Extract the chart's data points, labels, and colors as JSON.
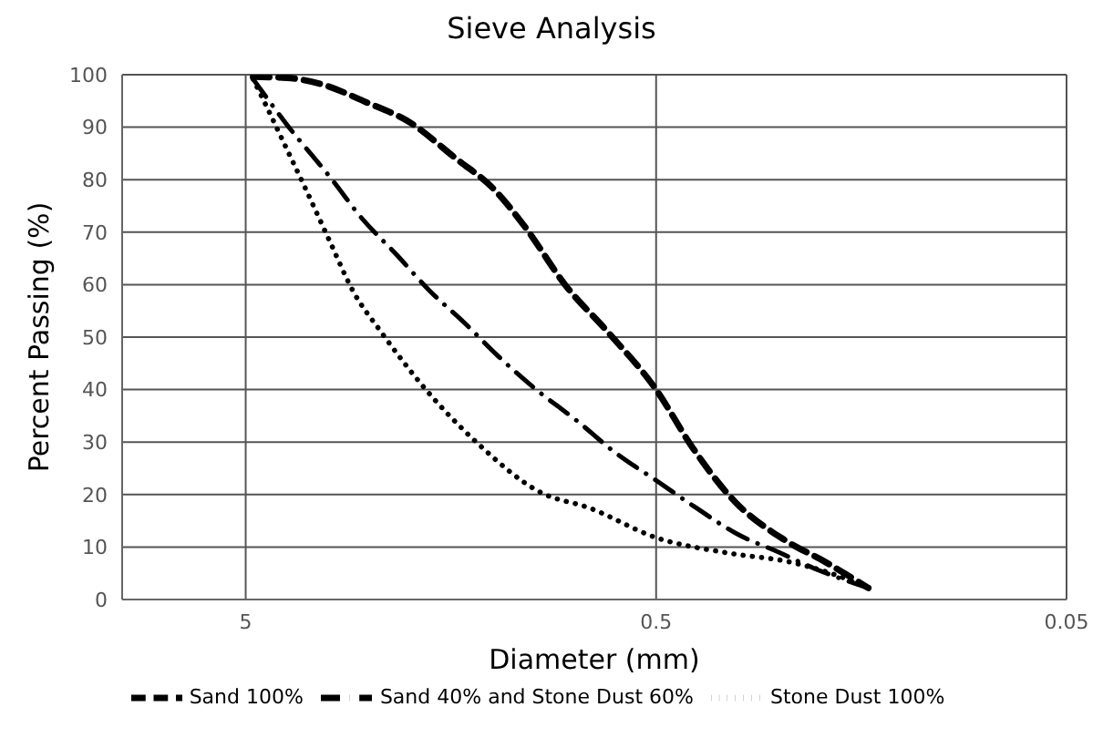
{
  "chart_data": {
    "type": "line",
    "title": "Sieve Analysis",
    "xlabel": "Diameter (mm)",
    "ylabel": "Percent Passing (%)",
    "log": "x",
    "xlim": [
      10,
      0.05
    ],
    "xticks": [
      5,
      0.5,
      0.05
    ],
    "ylim": [
      0,
      100
    ],
    "yticks": [
      0,
      10,
      20,
      30,
      40,
      50,
      60,
      70,
      80,
      90,
      100
    ],
    "grid": true,
    "legend": "bottom",
    "marker": "none",
    "series": [
      {
        "name": "Stone Dust 100%",
        "color": "#000000",
        "line_style": "dotted",
        "x": [
          4.8,
          4.47,
          4.11,
          3.58,
          3.13,
          2.73,
          2.34,
          1.82,
          1.38,
          0.95,
          0.73,
          0.5,
          0.33,
          0.238,
          0.186,
          0.152
        ],
        "values": [
          99.2,
          94.3,
          88.3,
          78.4,
          68.5,
          58.6,
          51,
          40,
          30.2,
          20.3,
          17.5,
          11.8,
          8.8,
          7.2,
          4.9,
          2.3
        ]
      },
      {
        "name": "Sand 40% and Stone Dust 60%",
        "color": "#000000",
        "line_style": "dashdot",
        "x": [
          4.8,
          3.97,
          3.08,
          2.61,
          2.15,
          1.79,
          1.46,
          1.21,
          0.98,
          0.778,
          0.634,
          0.5,
          0.4,
          0.316,
          0.253,
          0.207,
          0.152
        ],
        "values": [
          99.2,
          90.5,
          80,
          72.7,
          65.8,
          59,
          52.6,
          46.3,
          40,
          34,
          28.2,
          22.7,
          17.5,
          12.4,
          9.1,
          6,
          2.2
        ]
      },
      {
        "name": "Sand 100%",
        "color": "#000000",
        "line_style": "dashed",
        "x": [
          4.8,
          3.97,
          3.24,
          2.55,
          2.0,
          1.53,
          1.25,
          1.05,
          0.83,
          0.656,
          0.5,
          0.408,
          0.321,
          0.245,
          0.193,
          0.152
        ],
        "values": [
          99.6,
          99.4,
          98.1,
          94.8,
          91,
          83.9,
          78.4,
          71.3,
          59.8,
          51,
          40,
          29,
          18.6,
          11.5,
          7.1,
          2.2
        ]
      }
    ]
  }
}
